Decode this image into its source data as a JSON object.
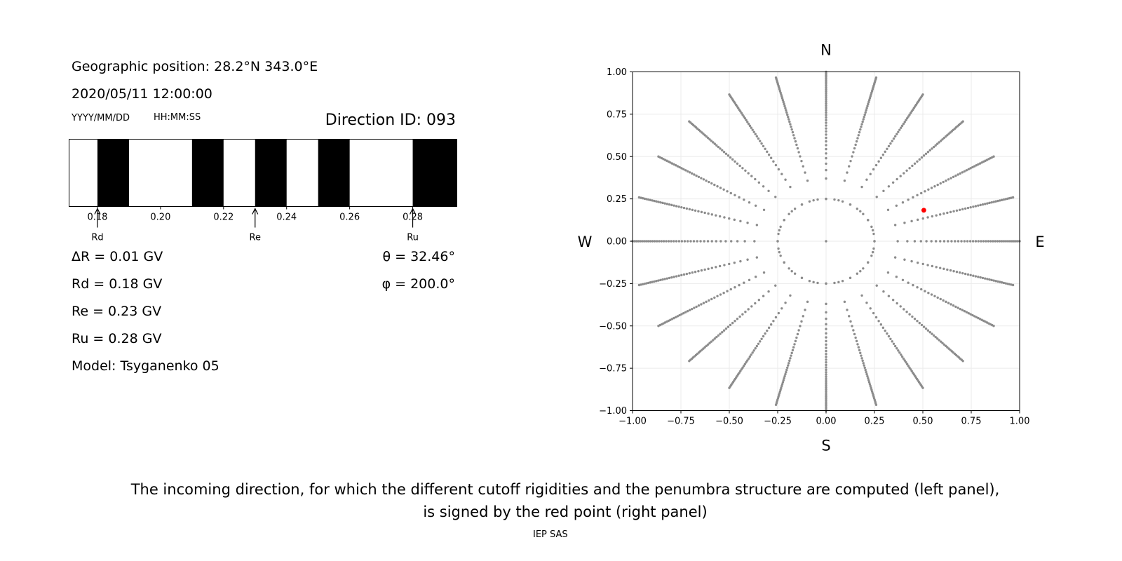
{
  "left_panel": {
    "geo_position": "Geographic position: 28.2°N 343.0°E",
    "datetime": "2020/05/11 12:00:00",
    "date_format": "YYYY/MM/DD",
    "time_format": "HH:MM:SS",
    "direction_id": "Direction ID: 093",
    "params_left": [
      "ΔR = 0.01 GV",
      "Rd = 0.18 GV",
      "Re = 0.23 GV",
      "Ru = 0.28 GV",
      "Model: Tsyganenko 05"
    ],
    "theta_text": "θ = 32.46°",
    "phi_text": "φ = 200.0°"
  },
  "caption": {
    "line1": "The incoming direction, for which the different cutoff rigidities and the penumbra structure are computed (left panel),",
    "line2": "is signed by the red point (right panel)",
    "credit": "IEP SAS"
  },
  "chart_data": [
    {
      "type": "penumbra_bar",
      "xlim": [
        0.171,
        0.294
      ],
      "ticks": [
        0.18,
        0.2,
        0.22,
        0.24,
        0.26,
        0.28
      ],
      "tick_labels": [
        "0.18",
        "0.20",
        "0.22",
        "0.24",
        "0.26",
        "0.28"
      ],
      "black_intervals": [
        [
          0.18,
          0.19
        ],
        [
          0.21,
          0.22
        ],
        [
          0.23,
          0.24
        ],
        [
          0.25,
          0.26
        ],
        [
          0.28,
          0.294
        ]
      ],
      "markers": [
        {
          "label": "Rd",
          "value": 0.18
        },
        {
          "label": "Re",
          "value": 0.23
        },
        {
          "label": "Ru",
          "value": 0.28
        }
      ],
      "colors": {
        "allowed": "#000000",
        "forbidden": "#ffffff"
      }
    },
    {
      "type": "scatter",
      "xlim": [
        -1.0,
        1.0
      ],
      "ylim": [
        -1.0,
        1.0
      ],
      "ticks": [
        -1.0,
        -0.75,
        -0.5,
        -0.25,
        0.0,
        0.25,
        0.5,
        0.75,
        1.0
      ],
      "tick_labels": [
        "−1.00",
        "−0.75",
        "−0.50",
        "−0.25",
        "0.00",
        "0.25",
        "0.50",
        "0.75",
        "1.00"
      ],
      "grid": true,
      "compass": {
        "north": "N",
        "south": "S",
        "west": "W",
        "east": "E"
      },
      "direction_grid": {
        "azimuth_step_deg": 15,
        "radius_start": 0.25,
        "radius_end": 1.0,
        "points_per_ray": 40,
        "inner_ring_radius": 0.25,
        "inner_ring_points": 36,
        "center": [
          0.0,
          0.0
        ],
        "color": "#8c8c8c"
      },
      "highlight": {
        "x": 0.505,
        "y": 0.183,
        "color": "#ff0000"
      }
    }
  ]
}
